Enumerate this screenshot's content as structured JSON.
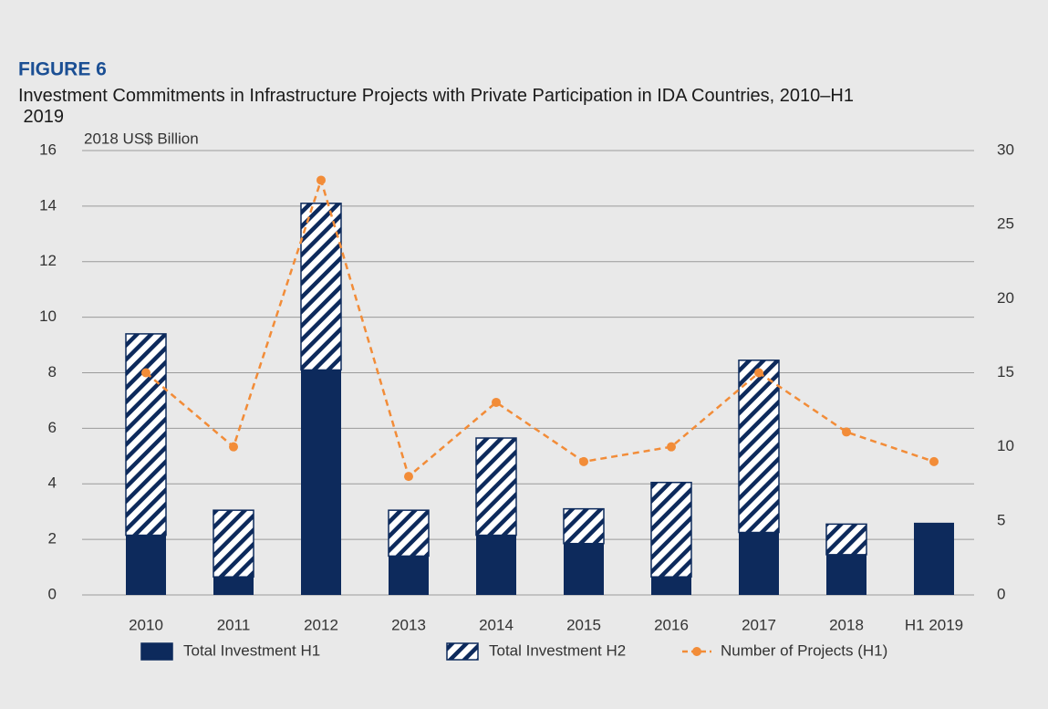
{
  "chart_data": {
    "type": "bar_line",
    "label": "FIGURE 6",
    "title": "Investment Commitments in Infrastructure Projects with Private Participation in IDA Countries, 2010–H1 2019",
    "ylabel": "2018 US$ Billion",
    "categories": [
      "2010",
      "2011",
      "2012",
      "2013",
      "2014",
      "2015",
      "2016",
      "2017",
      "2018",
      "H1 2019"
    ],
    "series": [
      {
        "name": "Total Investment H1",
        "color": "#0d2a5c",
        "style": "solid",
        "values": [
          2.15,
          0.65,
          8.1,
          1.4,
          2.15,
          1.85,
          0.65,
          2.25,
          1.45,
          2.6
        ]
      },
      {
        "name": "Total Investment H2",
        "color": "#0d2a5c",
        "style": "hatched",
        "values": [
          7.25,
          2.4,
          6.0,
          1.65,
          3.5,
          1.25,
          3.4,
          6.2,
          1.1,
          null
        ]
      },
      {
        "name": "Number of Projects (H1)",
        "color": "#f28c38",
        "type": "line",
        "axis": "y2",
        "values": [
          15,
          10,
          28,
          8,
          13,
          9,
          10,
          15,
          11,
          9
        ]
      }
    ],
    "ylim": [
      0,
      16
    ],
    "yticks": [
      0,
      2,
      4,
      6,
      8,
      10,
      12,
      14,
      16
    ],
    "y2lim": [
      0,
      30
    ],
    "y2ticks": [
      0,
      5,
      10,
      15,
      20,
      25,
      30
    ],
    "grid": true,
    "legend": "bottom"
  }
}
